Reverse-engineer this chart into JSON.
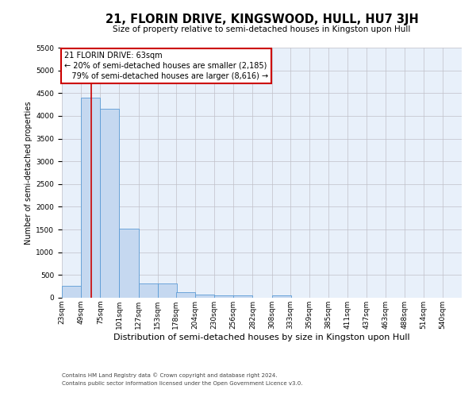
{
  "title": "21, FLORIN DRIVE, KINGSWOOD, HULL, HU7 3JH",
  "subtitle": "Size of property relative to semi-detached houses in Kingston upon Hull",
  "xlabel": "Distribution of semi-detached houses by size in Kingston upon Hull",
  "ylabel": "Number of semi-detached properties",
  "footer1": "Contains HM Land Registry data © Crown copyright and database right 2024.",
  "footer2": "Contains public sector information licensed under the Open Government Licence v3.0.",
  "property_label": "21 FLORIN DRIVE: 63sqm",
  "pct_smaller": 20,
  "n_smaller": 2185,
  "pct_larger": 79,
  "n_larger": 8616,
  "bin_labels": [
    "23sqm",
    "49sqm",
    "75sqm",
    "101sqm",
    "127sqm",
    "153sqm",
    "178sqm",
    "204sqm",
    "230sqm",
    "256sqm",
    "282sqm",
    "308sqm",
    "333sqm",
    "359sqm",
    "385sqm",
    "411sqm",
    "437sqm",
    "463sqm",
    "488sqm",
    "514sqm",
    "540sqm"
  ],
  "bin_left_edges": [
    23,
    49,
    75,
    101,
    127,
    153,
    178,
    204,
    230,
    256,
    282,
    308,
    333,
    359,
    385,
    411,
    437,
    463,
    488,
    514,
    540
  ],
  "bin_width": 26,
  "bar_values": [
    270,
    4400,
    4150,
    1520,
    320,
    310,
    120,
    70,
    55,
    55,
    0,
    50,
    0,
    0,
    0,
    0,
    0,
    0,
    0,
    0,
    0
  ],
  "bar_color": "#c5d8f0",
  "bar_edge_color": "#5b9bd5",
  "vline_color": "#cc0000",
  "vline_x": 63,
  "ylim": [
    0,
    5500
  ],
  "yticks": [
    0,
    500,
    1000,
    1500,
    2000,
    2500,
    3000,
    3500,
    4000,
    4500,
    5000,
    5500
  ],
  "background_color": "#ffffff",
  "ax_background": "#e8f0fa",
  "grid_color": "#c0c0c8",
  "annotation_box_color": "#ffffff",
  "annotation_box_edge": "#cc0000",
  "title_fontsize": 10.5,
  "subtitle_fontsize": 7.5,
  "xlabel_fontsize": 8,
  "ylabel_fontsize": 7,
  "tick_fontsize": 6.5,
  "ann_fontsize": 7,
  "footer_fontsize": 5
}
